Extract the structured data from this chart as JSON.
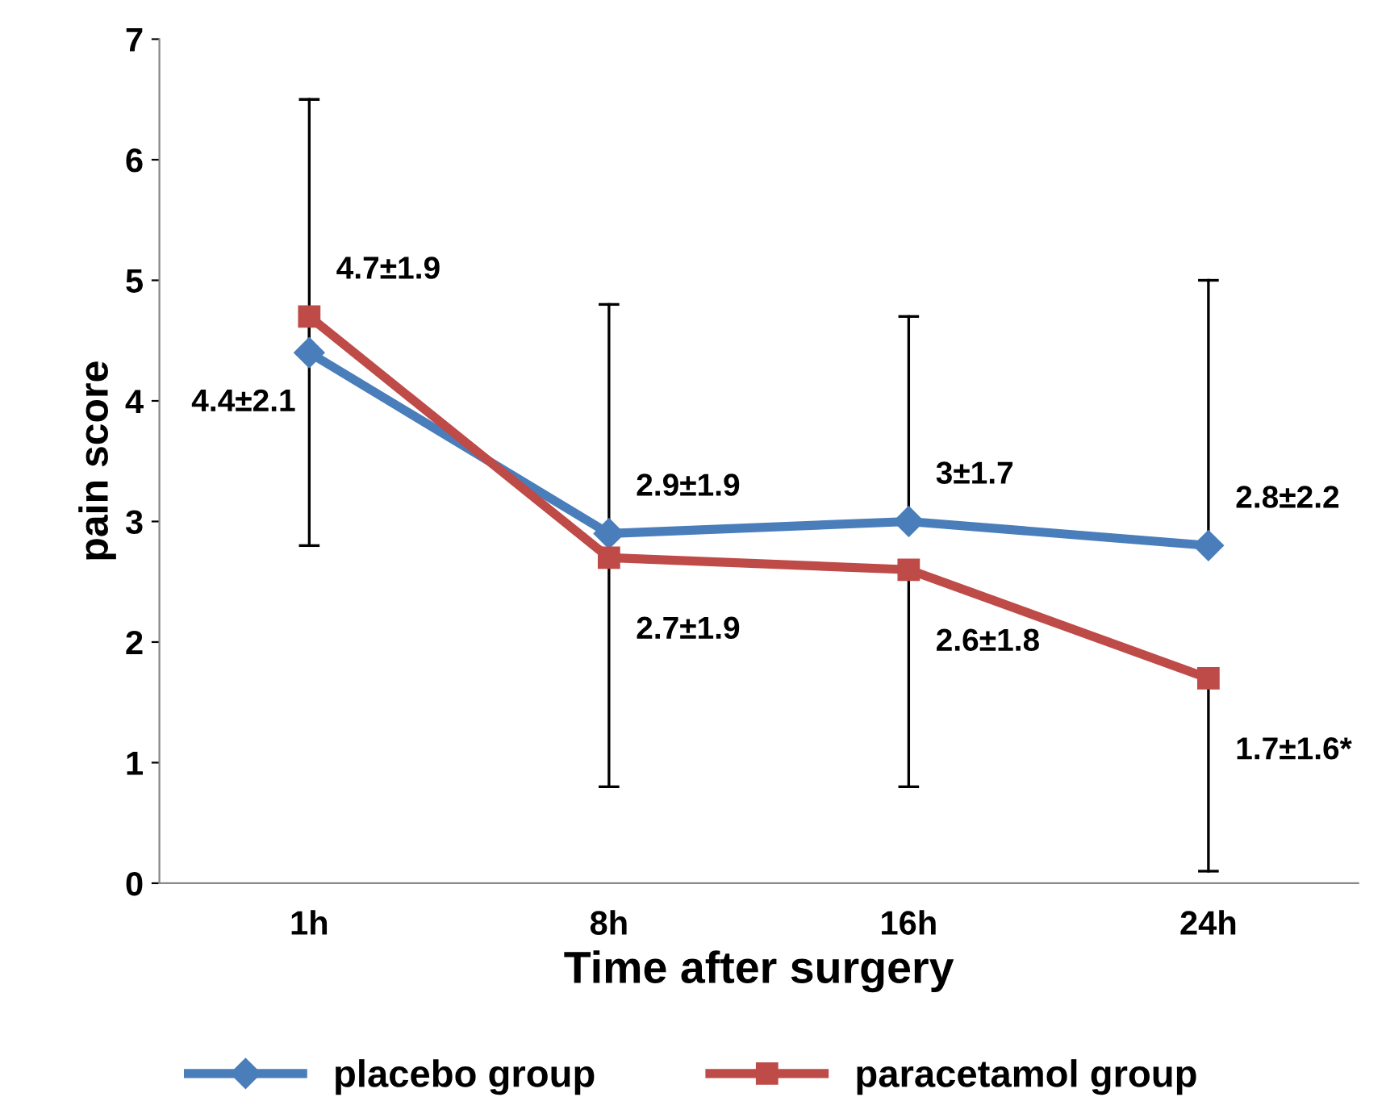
{
  "chart_data": {
    "type": "line",
    "xlabel": "Time after surgery",
    "ylabel": "pain score",
    "categories": [
      "1h",
      "8h",
      "16h",
      "24h"
    ],
    "series": [
      {
        "name": "placebo group",
        "color": "#4a7ebb",
        "marker": "diamond",
        "values": [
          4.4,
          2.9,
          3.0,
          2.8
        ],
        "errors": [
          [
            4.4,
            6.5
          ],
          [
            2.9,
            4.8
          ],
          [
            3.0,
            4.7
          ],
          [
            2.8,
            5.0
          ]
        ],
        "value_labels": [
          "4.4±2.1",
          "2.9±1.9",
          "3±1.7",
          "2.8±2.2"
        ]
      },
      {
        "name": "paracetamol group",
        "color": "#be4b48",
        "marker": "square",
        "values": [
          4.7,
          2.7,
          2.6,
          1.7
        ],
        "errors": [
          [
            2.8,
            4.7
          ],
          [
            0.8,
            2.7
          ],
          [
            0.8,
            2.6
          ],
          [
            0.1,
            1.7
          ]
        ],
        "value_labels": [
          "4.7±1.9",
          "2.7±1.9",
          "2.6±1.8",
          "1.7±1.6*"
        ]
      }
    ],
    "ylim": [
      0,
      7
    ],
    "yticks": [
      0,
      1,
      2,
      3,
      4,
      5,
      6,
      7
    ],
    "grid": false,
    "legend": "bottom",
    "line_style": "solid"
  }
}
